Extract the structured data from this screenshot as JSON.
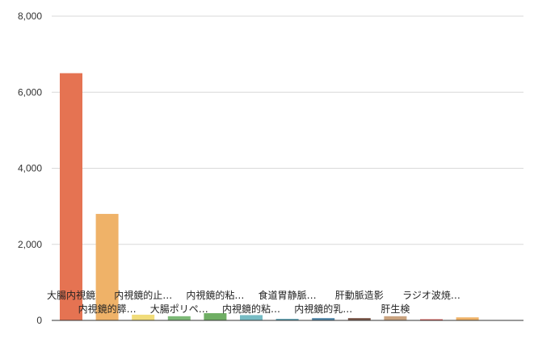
{
  "chart_data": {
    "type": "bar",
    "title": "",
    "xlabel": "",
    "ylabel": "",
    "ylim": [
      0,
      8000
    ],
    "y_ticks": [
      0,
      2000,
      4000,
      6000,
      8000
    ],
    "y_tick_labels": [
      "0",
      "2,000",
      "4,000",
      "6,000",
      "8,000"
    ],
    "grid": true,
    "legend": "none",
    "categories": [
      "大腸内視鏡",
      "内視鏡的膵…",
      "内視鏡的止…",
      "大腸ポリペ…",
      "内視鏡的粘…",
      "内視鏡的粘…",
      "食道胃静脈…",
      "内視鏡的乳…",
      "肝動脈造影",
      "肝生検",
      "ラジオ波焼…",
      ""
    ],
    "values": [
      6500,
      2800,
      150,
      110,
      190,
      140,
      40,
      60,
      60,
      110,
      30,
      80
    ],
    "colors": [
      "#e57352",
      "#efb268",
      "#f1dc7a",
      "#7dba77",
      "#6fae64",
      "#76bcc4",
      "#5aa0b2",
      "#4f86a8",
      "#7a5648",
      "#c9a37f",
      "#d9534f",
      "#efb268"
    ],
    "extra_bar_colors": [
      "#f1dc7a"
    ]
  }
}
